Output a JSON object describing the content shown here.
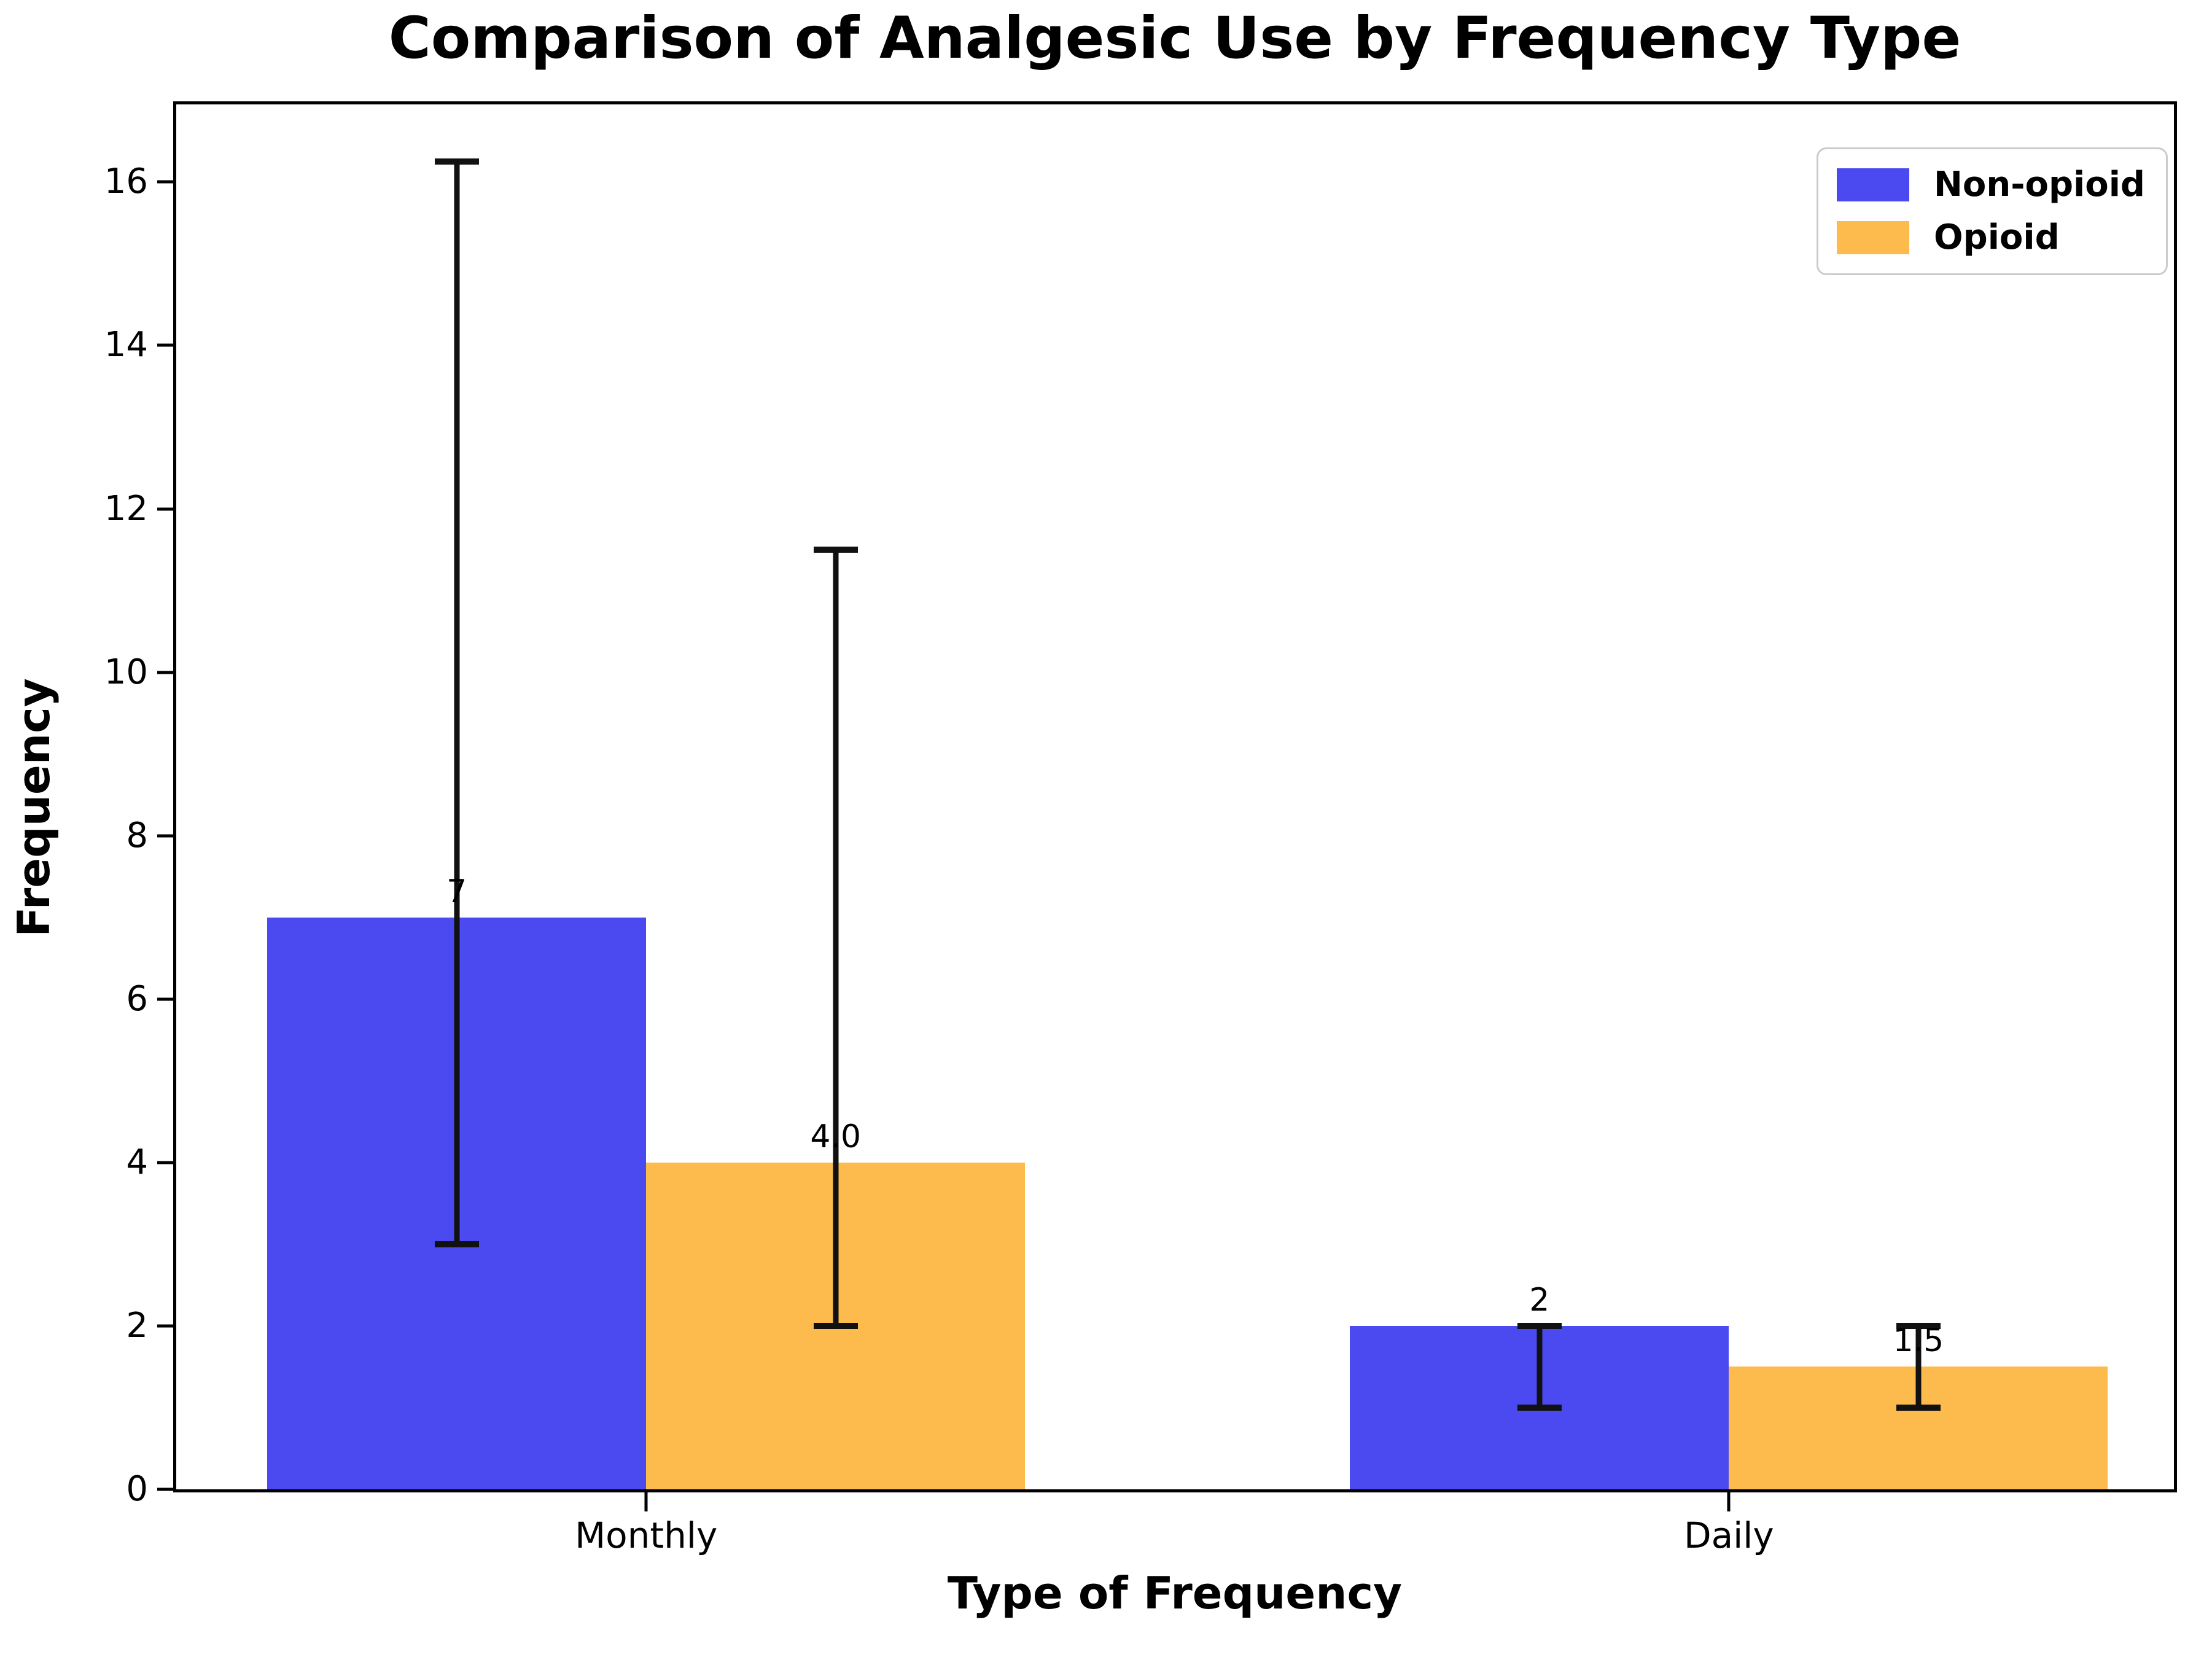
{
  "title": "Comparison of Analgesic Use by Frequency Type",
  "chart_data": {
    "type": "bar",
    "title": "Comparison of Analgesic Use by Frequency Type",
    "xlabel": "Type of Frequency",
    "ylabel": "Frequency",
    "categories": [
      "Monthly",
      "Daily"
    ],
    "series": [
      {
        "name": "Non-opioid",
        "color": "#4a4af0",
        "values": [
          7,
          2
        ],
        "err_low": [
          3,
          1
        ],
        "err_high": [
          16.25,
          2
        ],
        "point_labels": [
          "7",
          "2"
        ]
      },
      {
        "name": "Opioid",
        "color": "#fcbb4c",
        "values": [
          4,
          1.5
        ],
        "err_low": [
          2,
          1
        ],
        "err_high": [
          11.5,
          2
        ],
        "point_labels": [
          "4.0",
          "1.5"
        ]
      }
    ],
    "yticks": [
      0,
      2,
      4,
      6,
      8,
      10,
      12,
      14,
      16
    ],
    "ylim": [
      0,
      16.95
    ],
    "xlim": [
      -0.434,
      1.411
    ],
    "bar_width": 0.35,
    "error_bar_color": "#111111",
    "grid": false,
    "legend_position": "upper right"
  }
}
